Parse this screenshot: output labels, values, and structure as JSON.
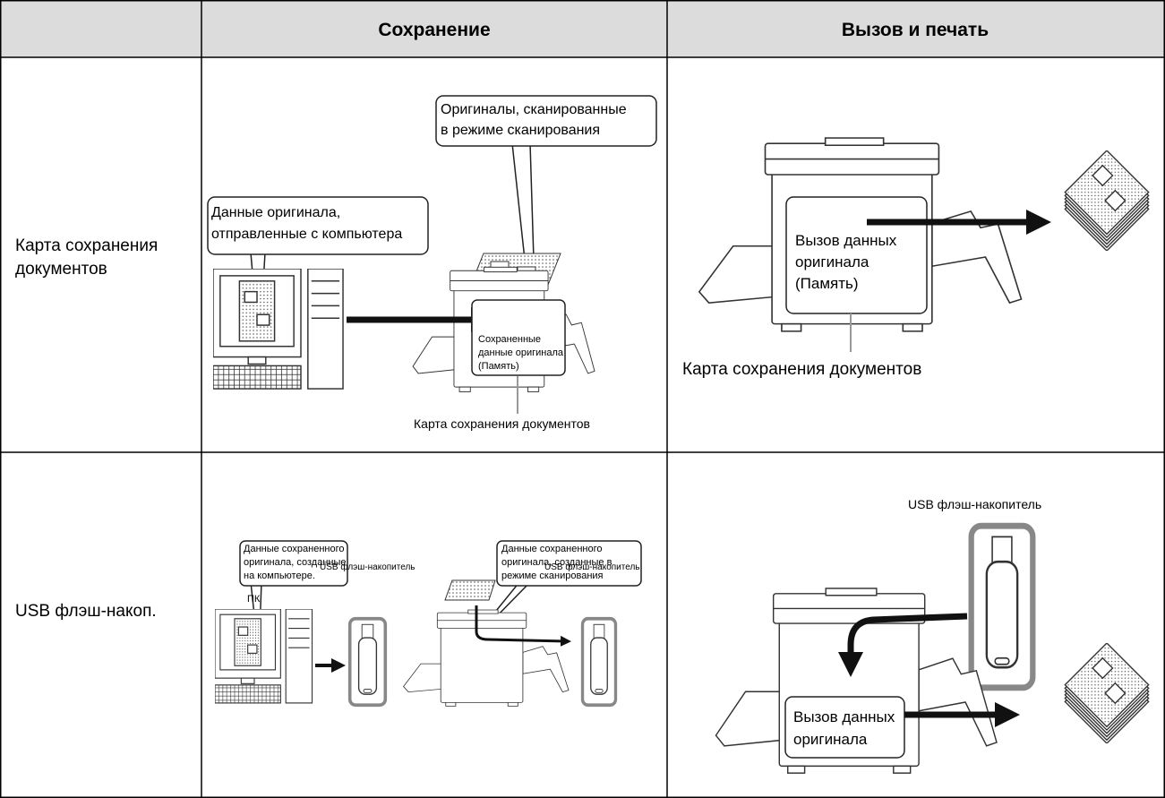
{
  "table": {
    "header": {
      "save": "Сохранение",
      "recall": "Вызов и печать"
    },
    "rows": [
      {
        "label": [
          "Карта сохранения",
          "документов"
        ],
        "save": {
          "scanned": [
            "Оригиналы, сканированные",
            "в режиме сканирования"
          ],
          "from_pc": [
            "Данные оригинала,",
            "отправленные с компьютера"
          ],
          "stored": [
            "Сохраненные",
            "данные оригинала",
            "(Память)"
          ],
          "card": "Карта сохранения документов"
        },
        "recall": {
          "recall": [
            "Вызов данных",
            "оригинала",
            "(Память)"
          ],
          "card": "Карта сохранения документов"
        }
      },
      {
        "label": [
          "USB флэш-накоп."
        ],
        "save": {
          "from_pc": [
            "Данные сохраненного",
            "оригинала, созданные",
            "на компьютере."
          ],
          "pc": "ПК",
          "usb_pc": "USB флэш-накопитель",
          "from_scan": [
            "Данные сохраненного",
            "оригинала, созданные в",
            "режиме сканирования"
          ],
          "usb_scan": "USB флэш-накопитель"
        },
        "recall": {
          "usb": "USB флэш-накопитель",
          "recall": [
            "Вызов данных",
            "оригинала"
          ]
        }
      }
    ]
  }
}
